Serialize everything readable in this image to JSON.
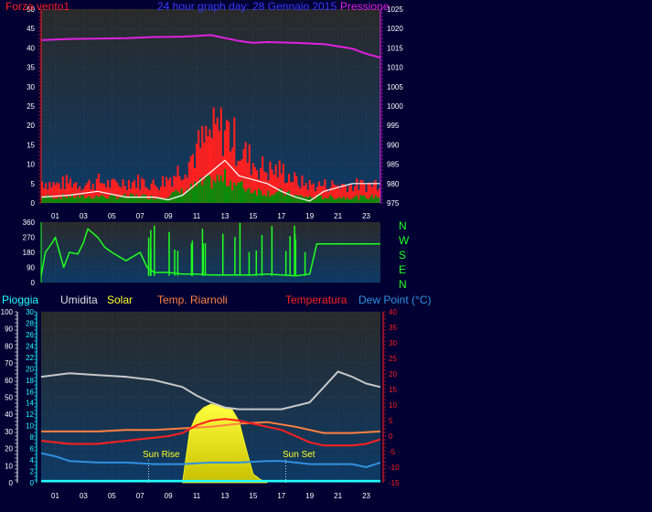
{
  "colors": {
    "page_bg": "#000033",
    "plot_bg_top": "#2a2a2a",
    "plot_bg_bottom": "#0d3a66",
    "wind": "#ff2020",
    "wind_avg": "#0a8a0a",
    "gust_line": "#ffffff",
    "pressure": "#e020e0",
    "direction": "#20ff20",
    "humidity": "#c8c8c8",
    "solar": "#ffff20",
    "temperature": "#ff2020",
    "feels_like": "#ff8040",
    "dew_point": "#3090e0",
    "rain": "#20ffff",
    "axis_text": "#ffffff"
  },
  "header": {
    "left_label": "Forza vento1",
    "title": "24 hour graph day:  28 Gennaio 2015",
    "right_label": "Pressione"
  },
  "direction_labels": [
    "N",
    "W",
    "S",
    "E",
    "N"
  ],
  "legend": {
    "rain": "Pioggia",
    "humidity": "Umidita",
    "solar": "Solar",
    "feels": "Temp. Riarnoli",
    "temperature": "Temperatura",
    "dew": "Dew Point (°C)"
  },
  "sun": {
    "rise_label": "Sun Rise",
    "set_label": "Sun Set",
    "rise_hour": 7.6,
    "set_hour": 17.3
  },
  "chart_data": [
    {
      "type": "line",
      "name": "wind-pressure",
      "x_ticks": [
        "01",
        "03",
        "05",
        "07",
        "09",
        "11",
        "13",
        "15",
        "17",
        "19",
        "21",
        "23"
      ],
      "x_range": [
        0,
        24
      ],
      "y_left": {
        "range": [
          0,
          50
        ],
        "ticks": [
          0,
          5,
          10,
          15,
          20,
          25,
          30,
          35,
          40,
          45,
          50
        ]
      },
      "y_right": {
        "range": [
          975,
          1025
        ],
        "ticks": [
          975,
          980,
          985,
          990,
          995,
          1000,
          1005,
          1010,
          1015,
          1020,
          1025
        ]
      },
      "series": [
        {
          "name": "Forza vento1",
          "axis": "left",
          "x": [
            0,
            1,
            2,
            3,
            4,
            5,
            6,
            7,
            8,
            9,
            10,
            11,
            12,
            13,
            14,
            15,
            16,
            17,
            18,
            19,
            20,
            21,
            22,
            23,
            24
          ],
          "values": [
            6,
            5,
            6,
            5,
            6,
            5,
            6,
            6,
            5,
            7,
            10,
            15,
            19,
            21,
            15,
            11,
            9,
            9,
            6,
            5,
            5,
            5,
            5,
            5,
            6
          ]
        },
        {
          "name": "Pressione",
          "axis": "right",
          "x": [
            0,
            2,
            4,
            6,
            8,
            10,
            12,
            14,
            15,
            16,
            18,
            20,
            22,
            23,
            24
          ],
          "values": [
            1017,
            1017.3,
            1017.4,
            1017.5,
            1017.8,
            1017.9,
            1018.3,
            1016.8,
            1016.3,
            1016.5,
            1016.3,
            1016,
            1014.8,
            1013.5,
            1012.5
          ]
        },
        {
          "name": "gust",
          "x": [
            0,
            2,
            4,
            6,
            8,
            9,
            10,
            11,
            12,
            13,
            14,
            15,
            16,
            17,
            18,
            19,
            20,
            22,
            24
          ],
          "values": [
            1.5,
            2,
            3,
            1.5,
            1.5,
            0.8,
            2,
            5,
            8,
            11,
            7,
            6,
            5,
            3,
            1.5,
            0.5,
            3,
            5,
            5
          ]
        }
      ]
    },
    {
      "type": "line",
      "name": "wind-direction",
      "x_range": [
        0,
        24
      ],
      "y_range": [
        0,
        360
      ],
      "y_ticks": [
        0,
        90,
        180,
        270,
        360
      ],
      "series": [
        {
          "name": "direction",
          "x": [
            0,
            0.3,
            0.8,
            1,
            1.3,
            1.6,
            2,
            2.6,
            3,
            3.3,
            4,
            4.5,
            5,
            6,
            7,
            7.5,
            8,
            9,
            10,
            11,
            12,
            13,
            14,
            15,
            16,
            17,
            18,
            19,
            19.5,
            20,
            22,
            24
          ],
          "values": [
            40,
            180,
            240,
            270,
            180,
            90,
            180,
            170,
            240,
            320,
            270,
            210,
            180,
            130,
            180,
            90,
            60,
            60,
            50,
            50,
            45,
            45,
            45,
            45,
            50,
            45,
            40,
            50,
            230,
            230,
            230,
            230
          ]
        }
      ]
    },
    {
      "type": "line",
      "name": "temp-humidity",
      "x_ticks": [
        "01",
        "03",
        "05",
        "07",
        "09",
        "11",
        "13",
        "15",
        "17",
        "19",
        "21",
        "23"
      ],
      "x_range": [
        0,
        24
      ],
      "y_left_pct": {
        "range": [
          0,
          100
        ],
        "ticks": [
          0,
          10,
          20,
          30,
          40,
          50,
          60,
          70,
          80,
          90,
          100
        ]
      },
      "y_left_mm": {
        "range": [
          0,
          30
        ],
        "ticks": [
          0,
          2,
          4,
          6,
          8,
          10,
          12,
          14,
          16,
          18,
          20,
          22,
          24,
          26,
          28,
          30
        ]
      },
      "y_right": {
        "range": [
          -15,
          40
        ],
        "ticks": [
          -15,
          -10,
          -5,
          0,
          5,
          10,
          15,
          20,
          25,
          30,
          35,
          40
        ]
      },
      "series": [
        {
          "name": "Umidita",
          "axis": "pct",
          "x": [
            0,
            2,
            4,
            6,
            8,
            9,
            10,
            11,
            12,
            13,
            14,
            15,
            16,
            17,
            18,
            19,
            20,
            21,
            22,
            23,
            24
          ],
          "values": [
            62,
            64,
            63,
            62,
            60,
            58,
            56,
            51,
            47,
            44,
            43,
            43,
            43,
            43,
            45,
            47,
            56,
            65,
            62,
            58,
            56
          ]
        },
        {
          "name": "Solar",
          "axis": "pct",
          "x": [
            10,
            10.5,
            11,
            11.5,
            12,
            12.5,
            13,
            13.5,
            14,
            14.5,
            15,
            15.5,
            16
          ],
          "values": [
            0,
            30,
            40,
            44,
            46,
            45,
            44,
            43,
            36,
            20,
            5,
            2,
            0
          ]
        },
        {
          "name": "Temperatura",
          "axis": "right",
          "x": [
            0,
            1,
            2,
            3,
            4,
            5,
            6,
            7,
            8,
            9,
            10,
            11,
            12,
            13,
            14,
            15,
            16,
            17,
            18,
            19,
            20,
            21,
            22,
            23,
            24
          ],
          "values": [
            -1.5,
            -2,
            -2.5,
            -2.5,
            -2.5,
            -2,
            -1.5,
            -1,
            -0.5,
            0,
            1,
            3.5,
            5,
            5.5,
            5,
            4,
            3,
            2,
            0,
            -2,
            -3,
            -3,
            -3,
            -2.5,
            -1
          ]
        },
        {
          "name": "Temp. Riarnoli",
          "axis": "right",
          "x": [
            0,
            2,
            4,
            6,
            8,
            10,
            12,
            14,
            16,
            18,
            20,
            22,
            24
          ],
          "values": [
            1.5,
            1.5,
            1.5,
            2,
            2,
            2.5,
            3,
            4,
            4.5,
            3,
            1,
            1,
            1.5
          ]
        },
        {
          "name": "Dew Point",
          "axis": "right",
          "x": [
            0,
            1,
            2,
            4,
            6,
            8,
            10,
            12,
            14,
            16,
            17,
            18,
            19,
            20,
            21,
            22,
            23,
            24
          ],
          "values": [
            -5.5,
            -6.5,
            -8,
            -8.5,
            -8.5,
            -9,
            -9,
            -8.5,
            -8.5,
            -8,
            -8,
            -8.5,
            -9,
            -9,
            -9,
            -9,
            -10,
            -8.5
          ]
        },
        {
          "name": "Pioggia",
          "axis": "pct",
          "x": [
            0,
            24
          ],
          "values": [
            1,
            1
          ]
        }
      ]
    }
  ]
}
